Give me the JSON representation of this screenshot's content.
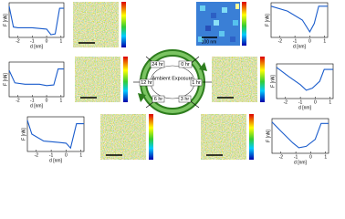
{
  "center": {
    "title": "Ambient Exposure",
    "times": [
      "0 hr",
      "1 hr",
      "3 hr",
      "6 hr",
      "12 hr",
      "24 hr"
    ]
  },
  "scale_bar": "100 nm",
  "axes": {
    "x_label": "d [nm]",
    "y_label": "F [nN]",
    "x_ticks": [
      -2,
      -1,
      0,
      1
    ],
    "xlim": [
      -2.6,
      1.2
    ],
    "ylim": [
      -3,
      2
    ]
  },
  "plots": [
    {
      "x": [
        -2.6,
        -2.3,
        -2,
        -1,
        0,
        0.3,
        0.6,
        0.9,
        1.2
      ],
      "y": [
        1.5,
        -1.5,
        -1.6,
        -1.6,
        -1.8,
        -2.6,
        -2.5,
        1.2,
        1.2
      ]
    },
    {
      "x": [
        -2.6,
        -1.5,
        -0.5,
        0,
        0.3,
        0.6,
        1.2
      ],
      "y": [
        1.5,
        0.8,
        -0.5,
        -2.2,
        -1,
        1.5,
        1.5
      ]
    },
    {
      "x": [
        -2.6,
        -2.2,
        -1.5,
        -0.5,
        0,
        0.5,
        0.8,
        1.2
      ],
      "y": [
        0.8,
        -1,
        -1.2,
        -1.2,
        -1.4,
        -1.3,
        1,
        1
      ]
    },
    {
      "x": [
        -2.6,
        -1.8,
        -1,
        -0.6,
        -0.2,
        0.3,
        0.6,
        1.2
      ],
      "y": [
        1.5,
        0.2,
        -1,
        -1.8,
        -1.5,
        -0.5,
        1.2,
        1.2
      ]
    },
    {
      "x": [
        -2.6,
        -2.3,
        -1.5,
        -0.5,
        0,
        0.3,
        0.7,
        1.2
      ],
      "y": [
        1.5,
        -0.5,
        -1.5,
        -1.7,
        -1.8,
        -2.5,
        1,
        1
      ]
    },
    {
      "x": [
        -2.6,
        -2,
        -1.2,
        -0.8,
        -0.3,
        0.3,
        0.7,
        1.2
      ],
      "y": [
        1.5,
        0.2,
        -1.5,
        -2.2,
        -2,
        -1,
        1.3,
        1.3
      ]
    }
  ]
}
